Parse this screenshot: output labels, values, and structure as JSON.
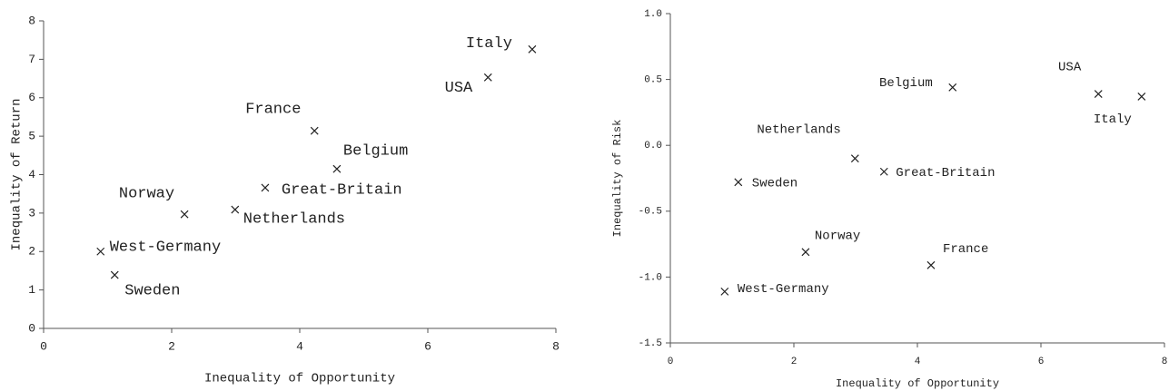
{
  "chart_data": [
    {
      "type": "scatter",
      "x_label": "Inequality of Opportunity",
      "y_label": "Inequality of Return",
      "x": [
        7.63,
        6.94,
        4.23,
        4.58,
        3.46,
        2.99,
        2.2,
        0.89,
        1.11
      ],
      "values": [
        7.26,
        6.53,
        5.14,
        4.15,
        3.66,
        3.09,
        2.97,
        2.0,
        1.39
      ],
      "labels": [
        "Italy",
        "USA",
        "France",
        "Belgium",
        "Great-Britain",
        "Netherlands",
        "Norway",
        "West-Germany",
        "Sweden"
      ],
      "xlim": [
        0,
        8
      ],
      "ylim": [
        0,
        8
      ],
      "xticks": [
        0,
        2,
        4,
        6,
        8
      ],
      "yticks": [
        0,
        1,
        2,
        3,
        4,
        5,
        6,
        7,
        8
      ],
      "color": "#222222"
    },
    {
      "type": "scatter",
      "x_label": "Inequality of Opportunity",
      "y_label": "Inequality of Risk",
      "x": [
        7.63,
        6.93,
        4.22,
        4.57,
        3.46,
        2.99,
        2.19,
        0.88,
        1.1
      ],
      "values": [
        0.37,
        0.39,
        -0.91,
        0.44,
        -0.2,
        -0.1,
        -0.81,
        -1.11,
        -0.28
      ],
      "labels": [
        "Italy",
        "USA",
        "France",
        "Belgium",
        "Great-Britain",
        "Netherlands",
        "Norway",
        "West-Germany",
        "Sweden"
      ],
      "xlim": [
        0,
        8
      ],
      "ylim": [
        -1.5,
        1.0
      ],
      "xticks": [
        0,
        2,
        4,
        6,
        8
      ],
      "yticks": [
        {
          "value": -1.5,
          "label": "-1.5"
        },
        {
          "value": -1.0,
          "label": "-1.0"
        },
        {
          "value": -0.5,
          "label": "-0.5"
        },
        {
          "value": 0.0,
          "label": "0.0"
        },
        {
          "value": 0.5,
          "label": "0.5"
        },
        {
          "value": 1.0,
          "label": "1.0"
        }
      ],
      "color": "#222222"
    }
  ]
}
